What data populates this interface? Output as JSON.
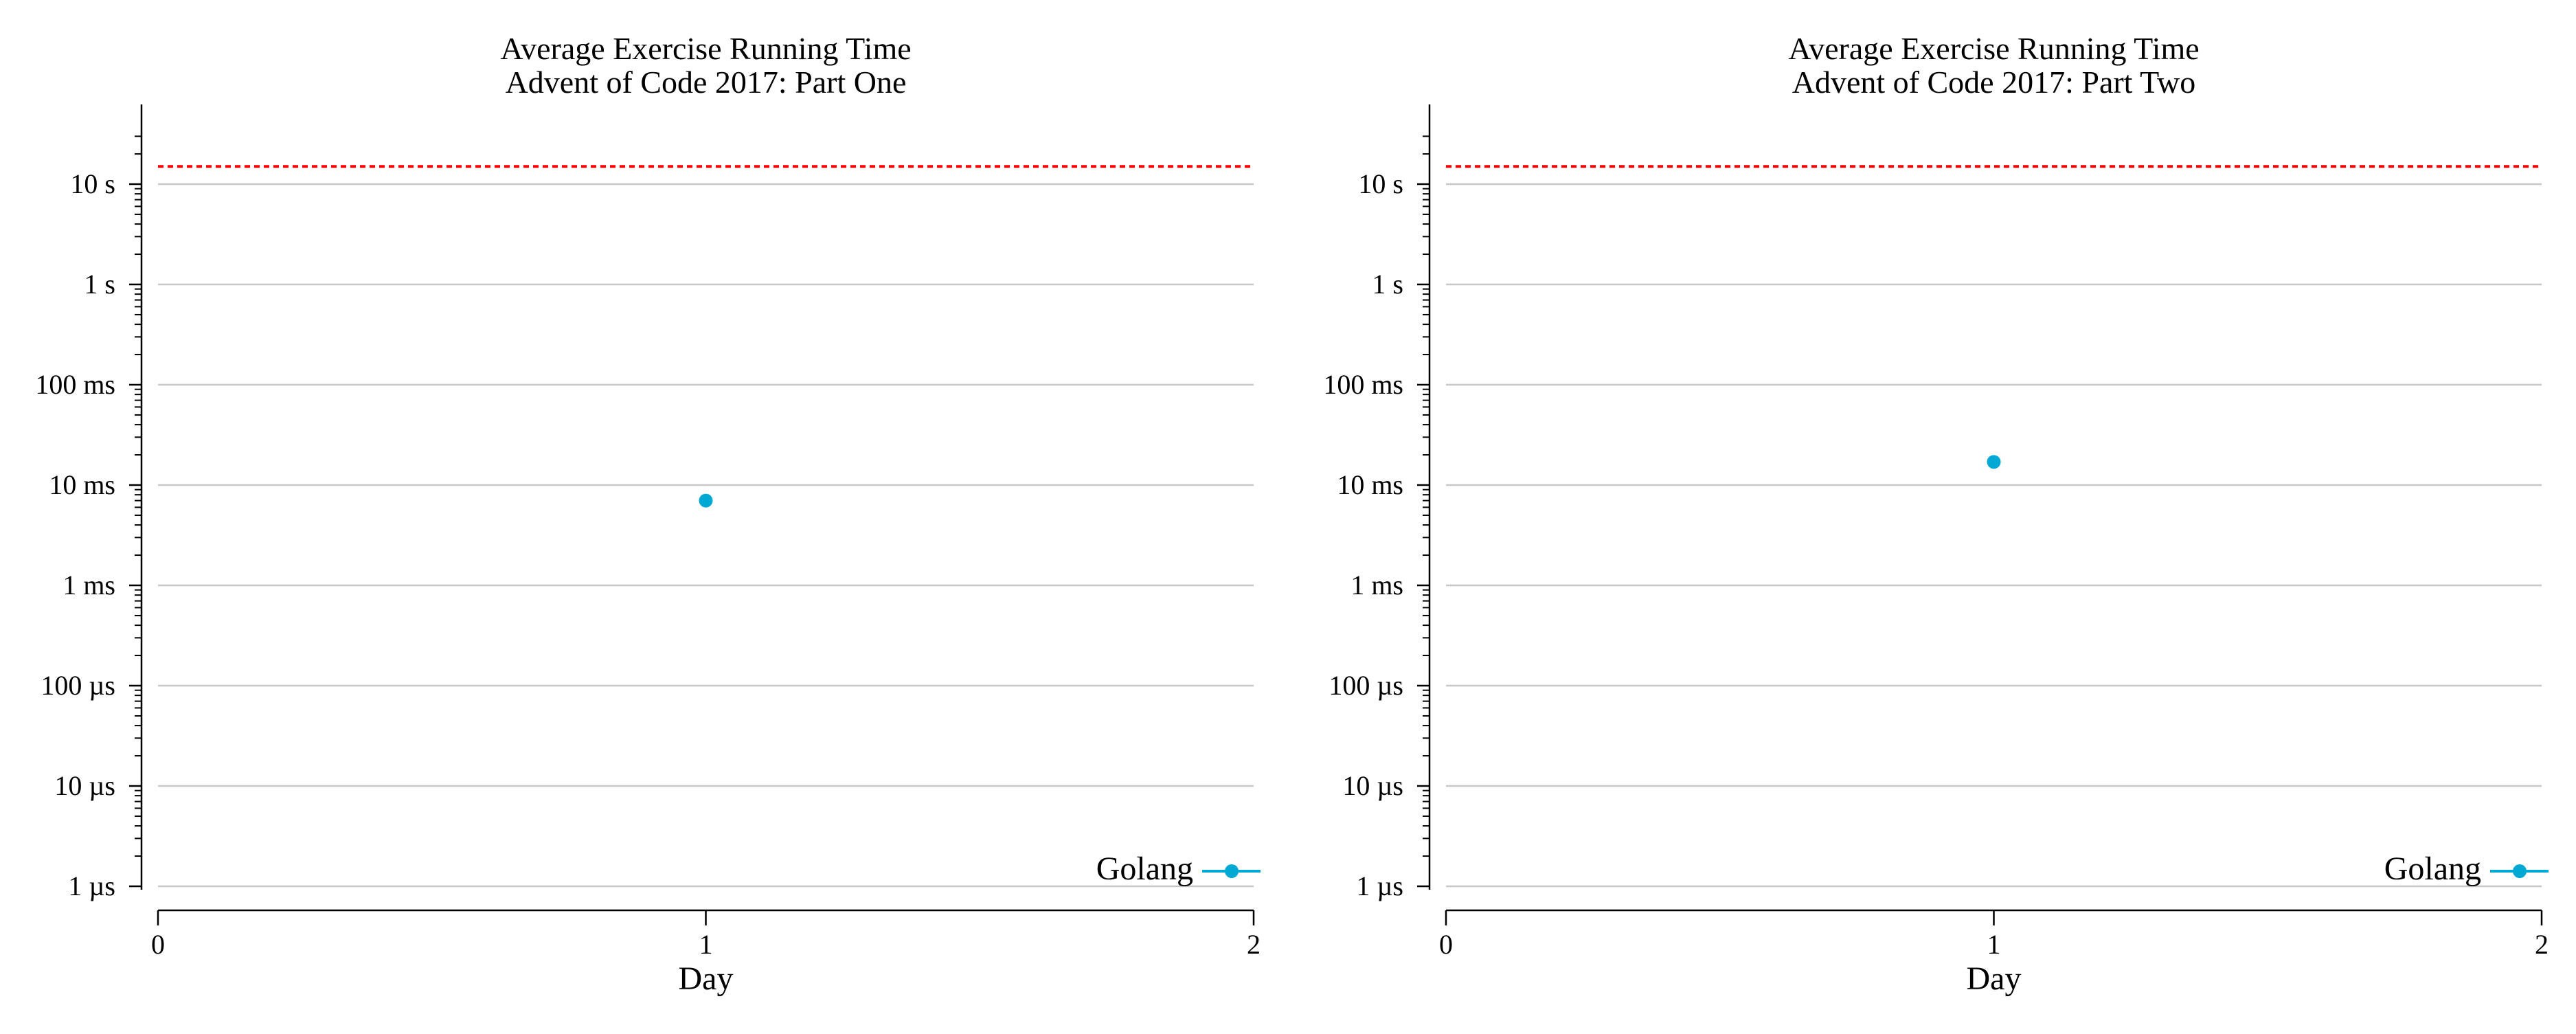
{
  "chart_data": [
    {
      "type": "scatter",
      "title": "Average Exercise Running Time",
      "subtitle": "Advent of Code 2017: Part One",
      "xlabel": "Day",
      "ylabel": "",
      "xlim": [
        0,
        2
      ],
      "x_ticks": [
        "0",
        "1",
        "2"
      ],
      "y_scale": "log",
      "ylim_seconds": [
        1e-06,
        30
      ],
      "y_ticks": [
        {
          "value": 1e-06,
          "label": "1 µs"
        },
        {
          "value": 1e-05,
          "label": "10 µs"
        },
        {
          "value": 0.0001,
          "label": "100 µs"
        },
        {
          "value": 0.001,
          "label": "1 ms"
        },
        {
          "value": 0.01,
          "label": "10 ms"
        },
        {
          "value": 0.1,
          "label": "100 ms"
        },
        {
          "value": 1,
          "label": "1 s"
        },
        {
          "value": 10,
          "label": "10 s"
        }
      ],
      "grid": true,
      "threshold_seconds": 15,
      "threshold_color": "#ff0000",
      "legend_position": "bottom-right",
      "series": [
        {
          "name": "Golang",
          "color": "#00a8d4",
          "points": [
            {
              "x": 1,
              "y": 0.007
            }
          ]
        }
      ]
    },
    {
      "type": "scatter",
      "title": "Average Exercise Running Time",
      "subtitle": "Advent of Code 2017: Part Two",
      "xlabel": "Day",
      "ylabel": "",
      "xlim": [
        0,
        2
      ],
      "x_ticks": [
        "0",
        "1",
        "2"
      ],
      "y_scale": "log",
      "ylim_seconds": [
        1e-06,
        30
      ],
      "y_ticks": [
        {
          "value": 1e-06,
          "label": "1 µs"
        },
        {
          "value": 1e-05,
          "label": "10 µs"
        },
        {
          "value": 0.0001,
          "label": "100 µs"
        },
        {
          "value": 0.001,
          "label": "1 ms"
        },
        {
          "value": 0.01,
          "label": "10 ms"
        },
        {
          "value": 0.1,
          "label": "100 ms"
        },
        {
          "value": 1,
          "label": "1 s"
        },
        {
          "value": 10,
          "label": "10 s"
        }
      ],
      "grid": true,
      "threshold_seconds": 15,
      "threshold_color": "#ff0000",
      "legend_position": "bottom-right",
      "series": [
        {
          "name": "Golang",
          "color": "#00a8d4",
          "points": [
            {
              "x": 1,
              "y": 0.017
            }
          ]
        }
      ]
    }
  ]
}
